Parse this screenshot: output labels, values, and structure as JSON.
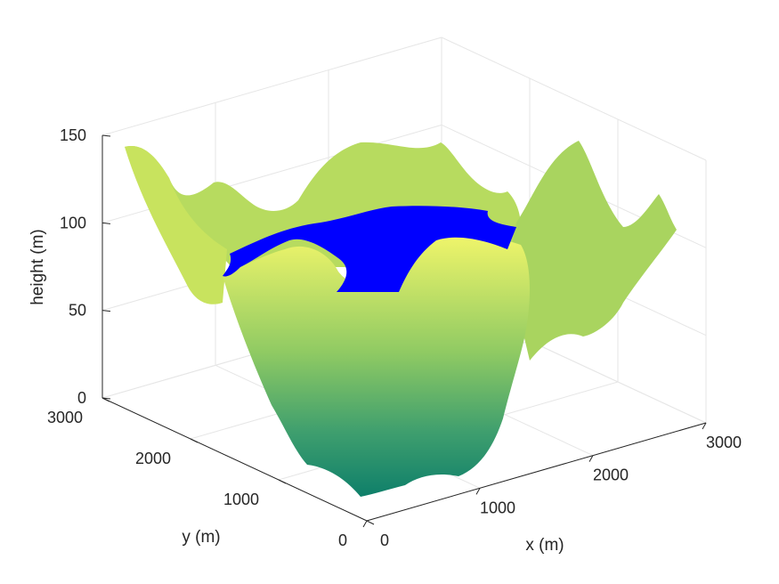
{
  "chart_data": {
    "type": "surface",
    "xlabel": "x (m)",
    "ylabel": "y (m)",
    "zlabel": "height (m)",
    "xlim": [
      0,
      3000
    ],
    "ylim": [
      0,
      3000
    ],
    "zlim": [
      0,
      150
    ],
    "x_ticks": [
      "0",
      "1000",
      "2000",
      "3000"
    ],
    "y_ticks": [
      "0",
      "1000",
      "2000",
      "3000"
    ],
    "z_ticks": [
      "0",
      "50",
      "100",
      "150"
    ],
    "grid": true,
    "colormap": "parula-like (green to yellow)",
    "colors": {
      "terrain_low": "#0e7f6a",
      "terrain_mid": "#5aae6f",
      "terrain_high": "#f0f56a",
      "water": "#0000ff"
    },
    "surfaces": [
      {
        "name": "",
        "kind": "terrain surface",
        "min_height_approx": 0,
        "max_height_approx": 145
      },
      {
        "name": "",
        "kind": "water plane",
        "height_approx": 80
      }
    ]
  }
}
